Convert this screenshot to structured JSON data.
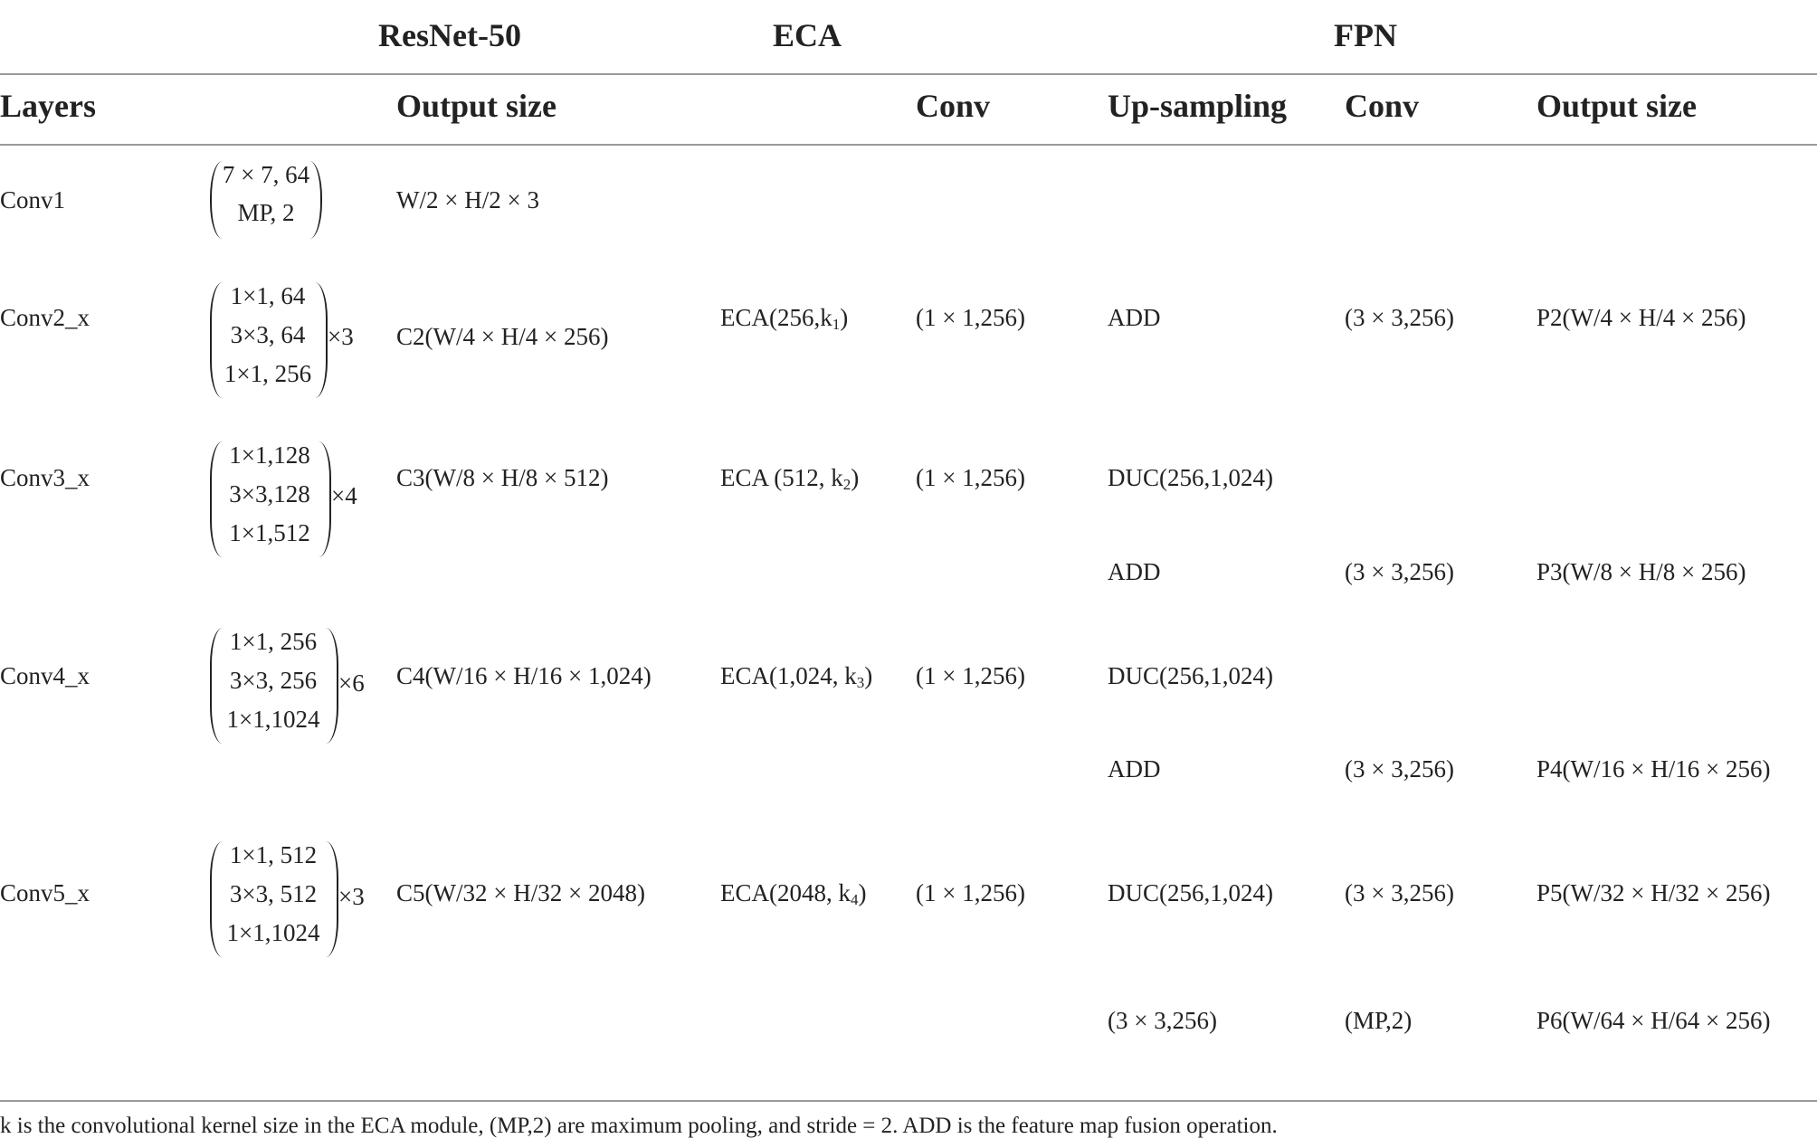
{
  "group_headers": {
    "resnet": "ResNet-50",
    "eca": "ECA",
    "fpn": "FPN"
  },
  "column_headers": {
    "layers": "Layers",
    "output_size": "Output size",
    "conv": "Conv",
    "upsampling": "Up-sampling",
    "fpn_conv": "Conv",
    "fpn_output": "Output size"
  },
  "rows": [
    {
      "layer": "Conv1",
      "matrix": [
        "7 × 7, 64",
        "MP, 2"
      ],
      "mult": "",
      "output": "W/2 × H/2 × 3",
      "eca": "",
      "eca_sub": "",
      "conv": "",
      "fpn": []
    },
    {
      "layer": "Conv2_x",
      "matrix": [
        "1×1, 64",
        "3×3, 64",
        "1×1, 256"
      ],
      "mult": "×3",
      "output": "C2(W/4 × H/4 × 256)",
      "eca": "ECA(256,k",
      "eca_sub": "1",
      "eca_end": ")",
      "conv": "(1 × 1,256)",
      "fpn": [
        {
          "up": "ADD",
          "conv": "(3 × 3,256)",
          "out": "P2(W/4 × H/4 × 256)"
        }
      ]
    },
    {
      "layer": "Conv3_x",
      "matrix": [
        "1×1,128",
        "3×3,128",
        "1×1,512"
      ],
      "mult": "×4",
      "output": "C3(W/8 × H/8 × 512)",
      "eca": "ECA (512, k",
      "eca_sub": "2",
      "eca_end": ")",
      "conv": "(1 × 1,256)",
      "fpn": [
        {
          "up": "DUC(256,1,024)",
          "conv": "",
          "out": ""
        },
        {
          "up": "ADD",
          "conv": "(3 × 3,256)",
          "out": "P3(W/8 × H/8 × 256)"
        }
      ]
    },
    {
      "layer": "Conv4_x",
      "matrix": [
        "1×1, 256",
        "3×3, 256",
        "1×1,1024"
      ],
      "mult": "×6",
      "output": "C4(W/16 × H/16 × 1,024)",
      "eca": "ECA(1,024, k",
      "eca_sub": "3",
      "eca_end": ")",
      "conv": "(1 × 1,256)",
      "fpn": [
        {
          "up": "DUC(256,1,024)",
          "conv": "",
          "out": ""
        },
        {
          "up": "ADD",
          "conv": "(3 × 3,256)",
          "out": "P4(W/16 × H/16 × 256)"
        }
      ]
    },
    {
      "layer": "Conv5_x",
      "matrix": [
        "1×1, 512",
        "3×3, 512",
        "1×1,1024"
      ],
      "mult": "×3",
      "output": "C5(W/32 × H/32 × 2048)",
      "eca": "ECA(2048, k",
      "eca_sub": "4",
      "eca_end": ")",
      "conv": "(1 × 1,256)",
      "fpn": [
        {
          "up": "DUC(256,1,024)",
          "conv": "(3 × 3,256)",
          "out": "P5(W/32 × H/32 × 256)"
        },
        {
          "up": "(3 × 3,256)",
          "conv": "(MP,2)",
          "out": "P6(W/64 × H/64 × 256)"
        }
      ]
    }
  ],
  "footnote": "k is the convolutional kernel size in the ECA module, (MP,2) are maximum pooling, and stride = 2. ADD is the feature map fusion operation."
}
